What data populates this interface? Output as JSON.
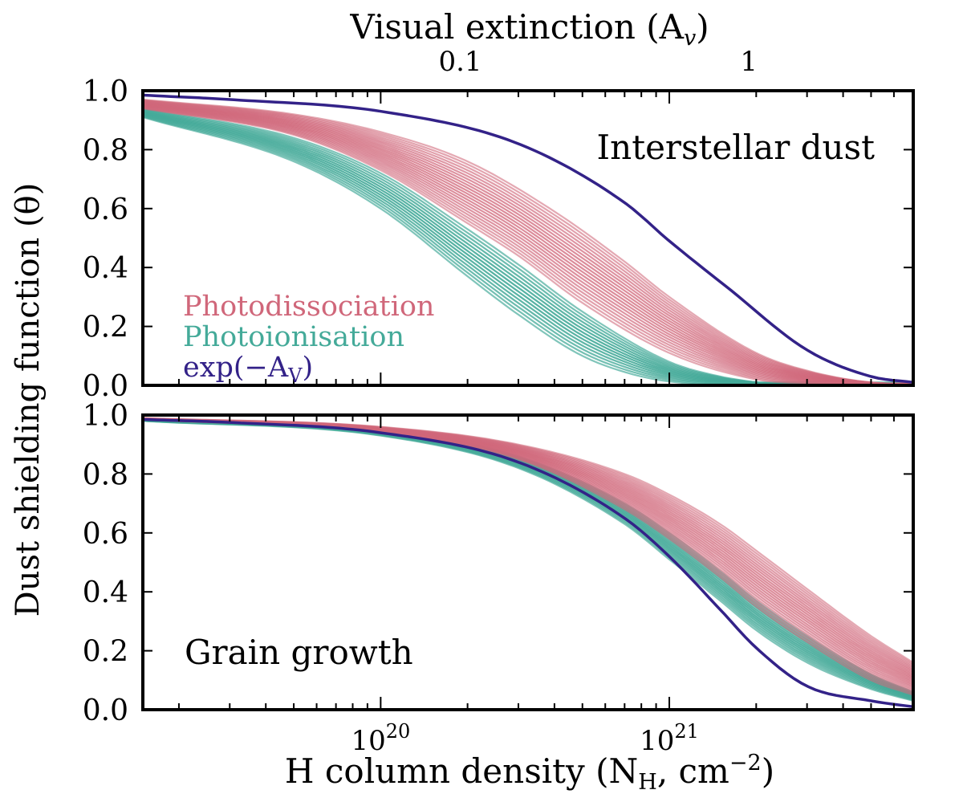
{
  "figure": {
    "ylabel": "Dust shielding function (θ)",
    "xlabel": "H column density (N",
    "xlabel_sub": "H",
    "xlabel_tail": ", cm",
    "xlabel_sup": "−2",
    "xlabel_close": ")",
    "top_axis_label": "Visual extinction (A",
    "top_axis_label_sub": "v",
    "top_axis_label_close": ")"
  },
  "colors": {
    "photodissociation": "#d0677a",
    "photoionisation": "#44aa99",
    "exp_av": "#332288",
    "axis": "#000000"
  },
  "chart_data": [
    {
      "type": "line",
      "panel": "top",
      "title": "Interstellar dust",
      "xscale": "log",
      "xlim": [
        1.5e+19,
        7e+21
      ],
      "ylim": [
        0,
        1
      ],
      "yticks": [
        0.0,
        0.2,
        0.4,
        0.6,
        0.8,
        1.0
      ],
      "ytick_labels": [
        "0.0",
        "0.2",
        "0.4",
        "0.6",
        "0.8",
        "1.0"
      ],
      "top_axis": {
        "label": "Visual extinction (Av)",
        "ticks": [
          {
            "value": 0.1,
            "label": "0.1"
          },
          {
            "value": 1,
            "label": "1"
          }
        ],
        "av_per_nh": 5.3e-22
      },
      "legend": {
        "position": "lower-left",
        "entries": [
          {
            "label": "Photodissociation",
            "color_key": "photodissociation"
          },
          {
            "label": "Photoionisation",
            "color_key": "photoionisation"
          },
          {
            "label": "exp(−A",
            "sub": "V",
            "close": ")",
            "color_key": "exp_av"
          }
        ]
      },
      "series": [
        {
          "name": "exp(-Av)",
          "color_key": "exp_av",
          "x": [
            1.5e+19,
            3e+19,
            1e+20,
            3e+20,
            7e+20,
            1e+21,
            1.6e+21,
            3e+21,
            5e+21,
            7e+21
          ],
          "values": [
            0.985,
            0.97,
            0.93,
            0.82,
            0.62,
            0.49,
            0.33,
            0.12,
            0.03,
            0.01
          ]
        },
        {
          "name": "Photoionisation, strongest",
          "color_key": "photoionisation",
          "x": [
            1.5e+19,
            5e+19,
            1e+20,
            2e+20,
            3e+20,
            5e+20,
            8e+20,
            1.2e+21,
            1.5e+21
          ],
          "values": [
            0.91,
            0.76,
            0.6,
            0.37,
            0.24,
            0.1,
            0.03,
            0.005,
            0.0
          ]
        },
        {
          "name": "Photoionisation, weakest",
          "color_key": "photoionisation",
          "x": [
            1.5e+19,
            5e+19,
            1e+20,
            2e+20,
            3e+20,
            5e+20,
            1e+21,
            1.5e+21,
            2e+21
          ],
          "values": [
            0.94,
            0.84,
            0.72,
            0.53,
            0.41,
            0.25,
            0.08,
            0.03,
            0.01
          ]
        },
        {
          "name": "Photodissociation, strongest",
          "color_key": "photodissociation",
          "x": [
            1.5e+19,
            5e+19,
            1e+20,
            2e+20,
            3e+20,
            5e+20,
            1e+21,
            2e+21,
            3e+21
          ],
          "values": [
            0.94,
            0.85,
            0.73,
            0.55,
            0.44,
            0.28,
            0.11,
            0.02,
            0.005
          ]
        },
        {
          "name": "Photodissociation, weakest",
          "color_key": "photodissociation",
          "x": [
            1.5e+19,
            5e+19,
            1e+20,
            2e+20,
            4e+20,
            7e+20,
            1e+21,
            2e+21,
            3e+21,
            5e+21,
            7e+21
          ],
          "values": [
            0.97,
            0.92,
            0.86,
            0.76,
            0.59,
            0.42,
            0.3,
            0.11,
            0.05,
            0.01,
            0.005
          ]
        }
      ]
    },
    {
      "type": "line",
      "panel": "bottom",
      "title": "Grain growth",
      "xscale": "log",
      "xlim": [
        1.5e+19,
        7e+21
      ],
      "ylim": [
        0,
        1
      ],
      "yticks": [
        0.0,
        0.2,
        0.4,
        0.6,
        0.8,
        1.0
      ],
      "ytick_labels": [
        "0.0",
        "0.2",
        "0.4",
        "0.6",
        "0.8",
        "1.0"
      ],
      "xticks": [
        {
          "value": 1e+20,
          "base": "10",
          "exp": "20"
        },
        {
          "value": 1e+21,
          "base": "10",
          "exp": "21"
        }
      ],
      "series": [
        {
          "name": "exp(-Av)",
          "color_key": "exp_av",
          "x": [
            1.5e+19,
            3e+19,
            1e+20,
            3e+20,
            7e+20,
            1e+21,
            1.5e+21,
            2e+21,
            3e+21,
            5e+21,
            7e+21
          ],
          "values": [
            0.985,
            0.975,
            0.94,
            0.84,
            0.65,
            0.52,
            0.34,
            0.21,
            0.08,
            0.03,
            0.01
          ]
        },
        {
          "name": "Photoionisation, strongest",
          "color_key": "photoionisation",
          "x": [
            1.5e+19,
            1e+20,
            3e+20,
            7e+20,
            1e+21,
            1.5e+21,
            2e+21,
            3e+21,
            5e+21,
            7e+21
          ],
          "values": [
            0.98,
            0.93,
            0.82,
            0.63,
            0.51,
            0.37,
            0.27,
            0.16,
            0.07,
            0.03
          ]
        },
        {
          "name": "Photoionisation, weakest",
          "color_key": "photoionisation",
          "x": [
            1.5e+19,
            1e+20,
            3e+20,
            7e+20,
            1e+21,
            1.5e+21,
            2e+21,
            3e+21,
            5e+21,
            7e+21
          ],
          "values": [
            0.985,
            0.95,
            0.86,
            0.7,
            0.6,
            0.47,
            0.37,
            0.25,
            0.12,
            0.06
          ]
        },
        {
          "name": "Photodissociation, strongest",
          "color_key": "photodissociation",
          "x": [
            1.5e+19,
            1e+20,
            3e+20,
            7e+20,
            1e+21,
            1.5e+21,
            2e+21,
            3e+21,
            5e+21,
            7e+21
          ],
          "values": [
            0.985,
            0.94,
            0.85,
            0.68,
            0.58,
            0.45,
            0.35,
            0.23,
            0.1,
            0.05
          ]
        },
        {
          "name": "Photodissociation, weakest",
          "color_key": "photodissociation",
          "x": [
            1.5e+19,
            1e+20,
            3e+20,
            7e+20,
            1e+21,
            1.5e+21,
            2e+21,
            3e+21,
            5e+21,
            7e+21
          ],
          "values": [
            0.99,
            0.96,
            0.9,
            0.8,
            0.73,
            0.63,
            0.54,
            0.41,
            0.25,
            0.16
          ]
        }
      ]
    }
  ]
}
